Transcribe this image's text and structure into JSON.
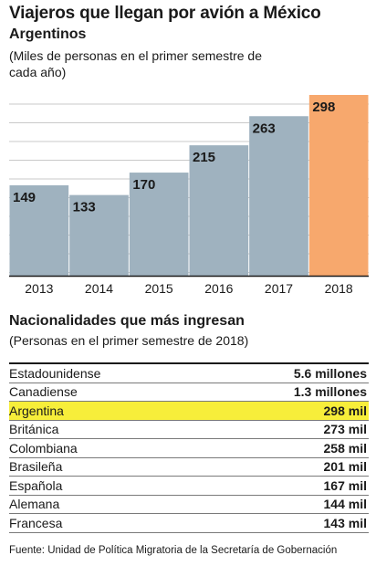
{
  "title": "Viajeros que llegan por avión a México",
  "subtitle": "Argentinos",
  "note": "(Miles de personas en el primer semestre de cada año)",
  "chart_data": {
    "type": "bar",
    "categories": [
      "2013",
      "2014",
      "2015",
      "2016",
      "2017",
      "2018"
    ],
    "values": [
      149,
      133,
      170,
      215,
      263,
      298
    ],
    "ylim": [
      0,
      298
    ],
    "colors": {
      "default": "#9fb2bf",
      "highlight": "#f7a86d",
      "grid": "#c9c9c9"
    },
    "highlight_index": 5,
    "grid": true
  },
  "section2": {
    "title": "Nacionalidades que más ingresan",
    "note": "(Personas en el primer semestre de 2018)",
    "rows": [
      {
        "country": "Estadounidense",
        "value": "5.6 millones"
      },
      {
        "country": "Canadiense",
        "value": "1.3 millones"
      },
      {
        "country": "Argentina",
        "value": "298 mil",
        "highlight": true
      },
      {
        "country": "Británica",
        "value": "273 mil"
      },
      {
        "country": "Colombiana",
        "value": "258 mil"
      },
      {
        "country": "Brasileña",
        "value": "201 mil"
      },
      {
        "country": "Española",
        "value": "167 mil"
      },
      {
        "country": "Alemana",
        "value": "144 mil"
      },
      {
        "country": "Francesa",
        "value": "143 mil"
      }
    ],
    "highlight_color": "#f7ee3a"
  },
  "source": "Fuente: Unidad de Política Migratoria de la Secretaría de Gobernación"
}
